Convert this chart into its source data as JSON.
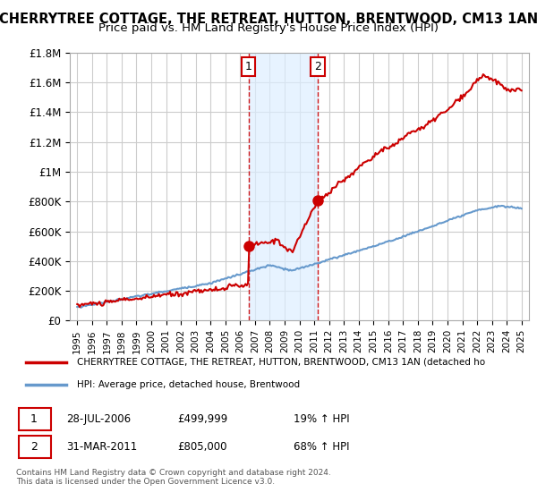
{
  "title": "CHERRYTREE COTTAGE, THE RETREAT, HUTTON, BRENTWOOD, CM13 1AN",
  "subtitle": "Price paid vs. HM Land Registry's House Price Index (HPI)",
  "title_fontsize": 10.5,
  "subtitle_fontsize": 9.5,
  "ylabel": "",
  "xlabel": "",
  "ylim": [
    0,
    1800000
  ],
  "yticks": [
    0,
    200000,
    400000,
    600000,
    800000,
    1000000,
    1200000,
    1400000,
    1600000,
    1800000
  ],
  "ytick_labels": [
    "£0",
    "£200K",
    "£400K",
    "£600K",
    "£800K",
    "£1M",
    "£1.2M",
    "£1.4M",
    "£1.6M",
    "£1.8M"
  ],
  "xlim_start": 1994.5,
  "xlim_end": 2025.5,
  "xtick_years": [
    1995,
    1996,
    1997,
    1998,
    1999,
    2000,
    2001,
    2002,
    2003,
    2004,
    2005,
    2006,
    2007,
    2008,
    2009,
    2010,
    2011,
    2012,
    2013,
    2014,
    2015,
    2016,
    2017,
    2018,
    2019,
    2020,
    2021,
    2022,
    2023,
    2024,
    2025
  ],
  "shade_start": 2006.57,
  "shade_end": 2011.25,
  "transaction1_x": 2006.57,
  "transaction1_y": 499999,
  "transaction1_label": "1",
  "transaction2_x": 2011.25,
  "transaction2_y": 805000,
  "transaction2_label": "2",
  "line_red_color": "#cc0000",
  "line_blue_color": "#6699cc",
  "shade_color": "#ddeeff",
  "background_color": "#ffffff",
  "grid_color": "#cccccc",
  "legend_red_label": "CHERRYTREE COTTAGE, THE RETREAT, HUTTON, BRENTWOOD, CM13 1AN (detached ho",
  "legend_blue_label": "HPI: Average price, detached house, Brentwood",
  "table_row1": [
    "1",
    "28-JUL-2006",
    "£499,999",
    "19% ↑ HPI"
  ],
  "table_row2": [
    "2",
    "31-MAR-2011",
    "£805,000",
    "68% ↑ HPI"
  ],
  "footer": "Contains HM Land Registry data © Crown copyright and database right 2024.\nThis data is licensed under the Open Government Licence v3.0.",
  "marker_color": "#cc0000",
  "marker_size": 8
}
